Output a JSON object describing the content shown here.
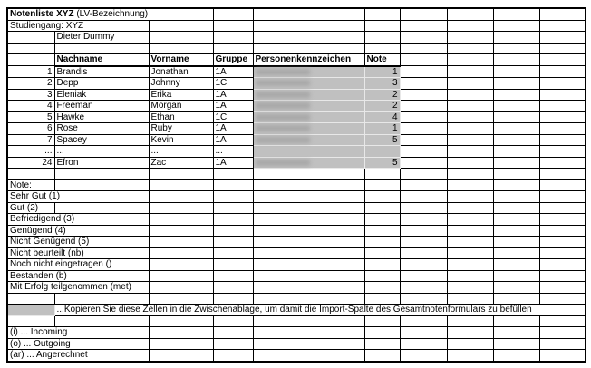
{
  "title": {
    "bold": "Notenliste XYZ",
    "rest": " (LV-Bezeichnung)"
  },
  "studiengang": "Studiengang: XYZ",
  "lecturer": "Dieter Dummy",
  "headers": [
    "Nachname",
    "Vorname",
    "Gruppe",
    "Personenkennzeichen",
    "Note"
  ],
  "students": [
    {
      "nr": "1",
      "nachname": "Brandis",
      "vorname": "Jonathan",
      "gruppe": "1A",
      "note": "1"
    },
    {
      "nr": "2",
      "nachname": "Depp",
      "vorname": "Johnny",
      "gruppe": "1C",
      "note": "3"
    },
    {
      "nr": "3",
      "nachname": "Eleniak",
      "vorname": "Erika",
      "gruppe": "1A",
      "note": "2"
    },
    {
      "nr": "4",
      "nachname": "Freeman",
      "vorname": "Morgan",
      "gruppe": "1A",
      "note": "2"
    },
    {
      "nr": "5",
      "nachname": "Hawke",
      "vorname": "Ethan",
      "gruppe": "1C",
      "note": "4"
    },
    {
      "nr": "6",
      "nachname": "Rose",
      "vorname": "Ruby",
      "gruppe": "1A",
      "note": "1"
    },
    {
      "nr": "7",
      "nachname": "Spacey",
      "vorname": "Kevin",
      "gruppe": "1A",
      "note": "5"
    },
    {
      "nr": "...",
      "nachname": "...",
      "vorname": "...",
      "gruppe": "...",
      "note": "",
      "ellipsis": true
    },
    {
      "nr": "24",
      "nachname": "Efron",
      "vorname": "Zac",
      "gruppe": "1A",
      "note": "5"
    }
  ],
  "legend_title": "Note:",
  "grades": [
    {
      "label": "Sehr Gut (1)",
      "span": 2
    },
    {
      "label": "Gut (2)",
      "span": 1
    },
    {
      "label": "Befriedigend (3)",
      "span": 2
    },
    {
      "label": "Genügend (4)",
      "span": 2
    },
    {
      "label": "Nicht Genügend (5)",
      "span": 2
    },
    {
      "label": "Nicht beurteilt (nb)",
      "span": 2
    },
    {
      "label": "Noch nicht eingetragen ()",
      "span": 2
    },
    {
      "label": "Bestanden (b)",
      "span": 2
    },
    {
      "label": "Mit Erfolg teilgenommen (met)",
      "span": 2
    }
  ],
  "copy_hint": "...Kopieren Sie diese Zellen in die Zwischenablage, um damit die Import-Spalte des Gesamtnotenformulars zu befüllen",
  "mobility": [
    "(i)  ... Incoming",
    "(o)  ... Outgoing",
    "(ar) ... Angerechnet"
  ],
  "colors": {
    "highlight": "#c0c0c0"
  }
}
